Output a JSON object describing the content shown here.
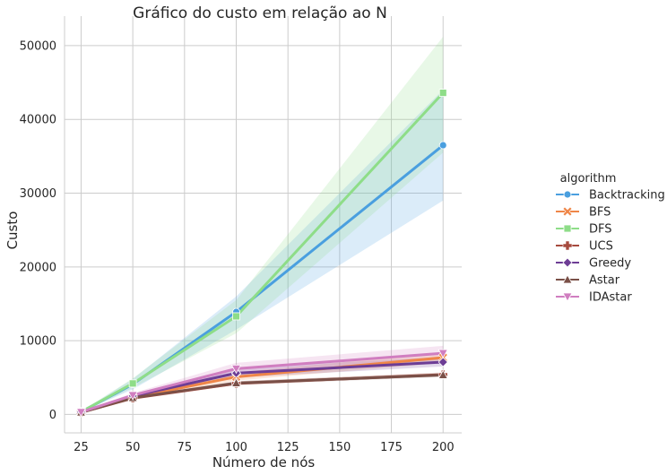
{
  "chart_data": {
    "type": "line",
    "title": "Gráfico do custo em relação ao N",
    "xlabel": "Número de nós",
    "ylabel": "Custo",
    "x": [
      25,
      50,
      100,
      200
    ],
    "xticks": [
      25,
      50,
      75,
      100,
      125,
      150,
      175,
      200
    ],
    "yticks": [
      0,
      10000,
      20000,
      30000,
      40000,
      50000
    ],
    "xlim": [
      17,
      209
    ],
    "ylim": [
      -2500,
      54000
    ],
    "grid": true,
    "legend": {
      "title": "algorithm",
      "placement": "right"
    },
    "series": [
      {
        "name": "Backtracking",
        "color": "#4a9fdf",
        "marker": "circle",
        "values": [
          350,
          4100,
          13900,
          36500
        ],
        "ci_low": [
          300,
          3400,
          11500,
          29000
        ],
        "ci_high": [
          420,
          4800,
          16000,
          44000
        ]
      },
      {
        "name": "BFS",
        "color": "#ef8648",
        "marker": "x",
        "values": [
          300,
          2300,
          5100,
          7700
        ],
        "ci_low": [
          250,
          2100,
          4600,
          7000
        ],
        "ci_high": [
          350,
          2500,
          5700,
          8400
        ]
      },
      {
        "name": "DFS",
        "color": "#8edd88",
        "marker": "square",
        "values": [
          350,
          4200,
          13300,
          43600
        ],
        "ci_low": [
          300,
          3600,
          11000,
          35500
        ],
        "ci_high": [
          420,
          4900,
          15500,
          51200
        ]
      },
      {
        "name": "UCS",
        "color": "#a64a3e",
        "marker": "plus",
        "values": [
          280,
          2200,
          4200,
          5400
        ],
        "ci_low": [
          250,
          2100,
          4000,
          5200
        ],
        "ci_high": [
          320,
          2350,
          4500,
          5700
        ]
      },
      {
        "name": "Greedy",
        "color": "#6d3d95",
        "marker": "diamond",
        "values": [
          300,
          2500,
          5600,
          7100
        ],
        "ci_low": [
          250,
          2200,
          5000,
          6500
        ],
        "ci_high": [
          350,
          2800,
          6300,
          7800
        ]
      },
      {
        "name": "Astar",
        "color": "#7a5048",
        "marker": "triangle-up",
        "values": [
          280,
          2250,
          4250,
          5350
        ],
        "ci_low": [
          250,
          2100,
          4000,
          5100
        ],
        "ci_high": [
          320,
          2400,
          4500,
          5600
        ]
      },
      {
        "name": "IDAstar",
        "color": "#d07ec0",
        "marker": "triangle-down",
        "values": [
          320,
          2600,
          6200,
          8300
        ],
        "ci_low": [
          270,
          2300,
          5500,
          7400
        ],
        "ci_high": [
          370,
          2900,
          7000,
          9300
        ]
      }
    ]
  }
}
